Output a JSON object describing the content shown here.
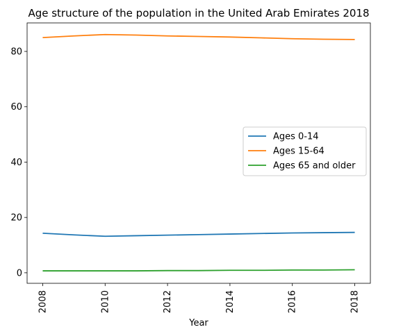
{
  "chart_data": {
    "type": "line",
    "title": "Age structure of the population in the United Arab Emirates 2018",
    "xlabel": "Year",
    "ylabel": "",
    "x": [
      2008,
      2009,
      2010,
      2011,
      2012,
      2013,
      2014,
      2015,
      2016,
      2017,
      2018
    ],
    "x_ticks": [
      "2008",
      "2010",
      "2012",
      "2014",
      "2016",
      "2018"
    ],
    "y_ticks": [
      "0",
      "20",
      "40",
      "60",
      "80"
    ],
    "xlim": [
      2007.5,
      2018.5
    ],
    "ylim": [
      -3.8,
      90.3
    ],
    "grid": false,
    "legend_position": "center-right",
    "series": [
      {
        "name": "Ages 0-14",
        "color": "#1f77b4",
        "values": [
          14.3,
          13.7,
          13.2,
          13.4,
          13.6,
          13.8,
          14.0,
          14.2,
          14.4,
          14.5,
          14.6
        ]
      },
      {
        "name": "Ages 15-64",
        "color": "#ff7f0e",
        "values": [
          85.0,
          85.6,
          86.1,
          85.9,
          85.6,
          85.4,
          85.2,
          84.9,
          84.6,
          84.4,
          84.3
        ]
      },
      {
        "name": "Ages 65 and older",
        "color": "#2ca02c",
        "values": [
          0.7,
          0.7,
          0.7,
          0.7,
          0.8,
          0.8,
          0.9,
          0.9,
          1.0,
          1.0,
          1.1
        ]
      }
    ]
  }
}
